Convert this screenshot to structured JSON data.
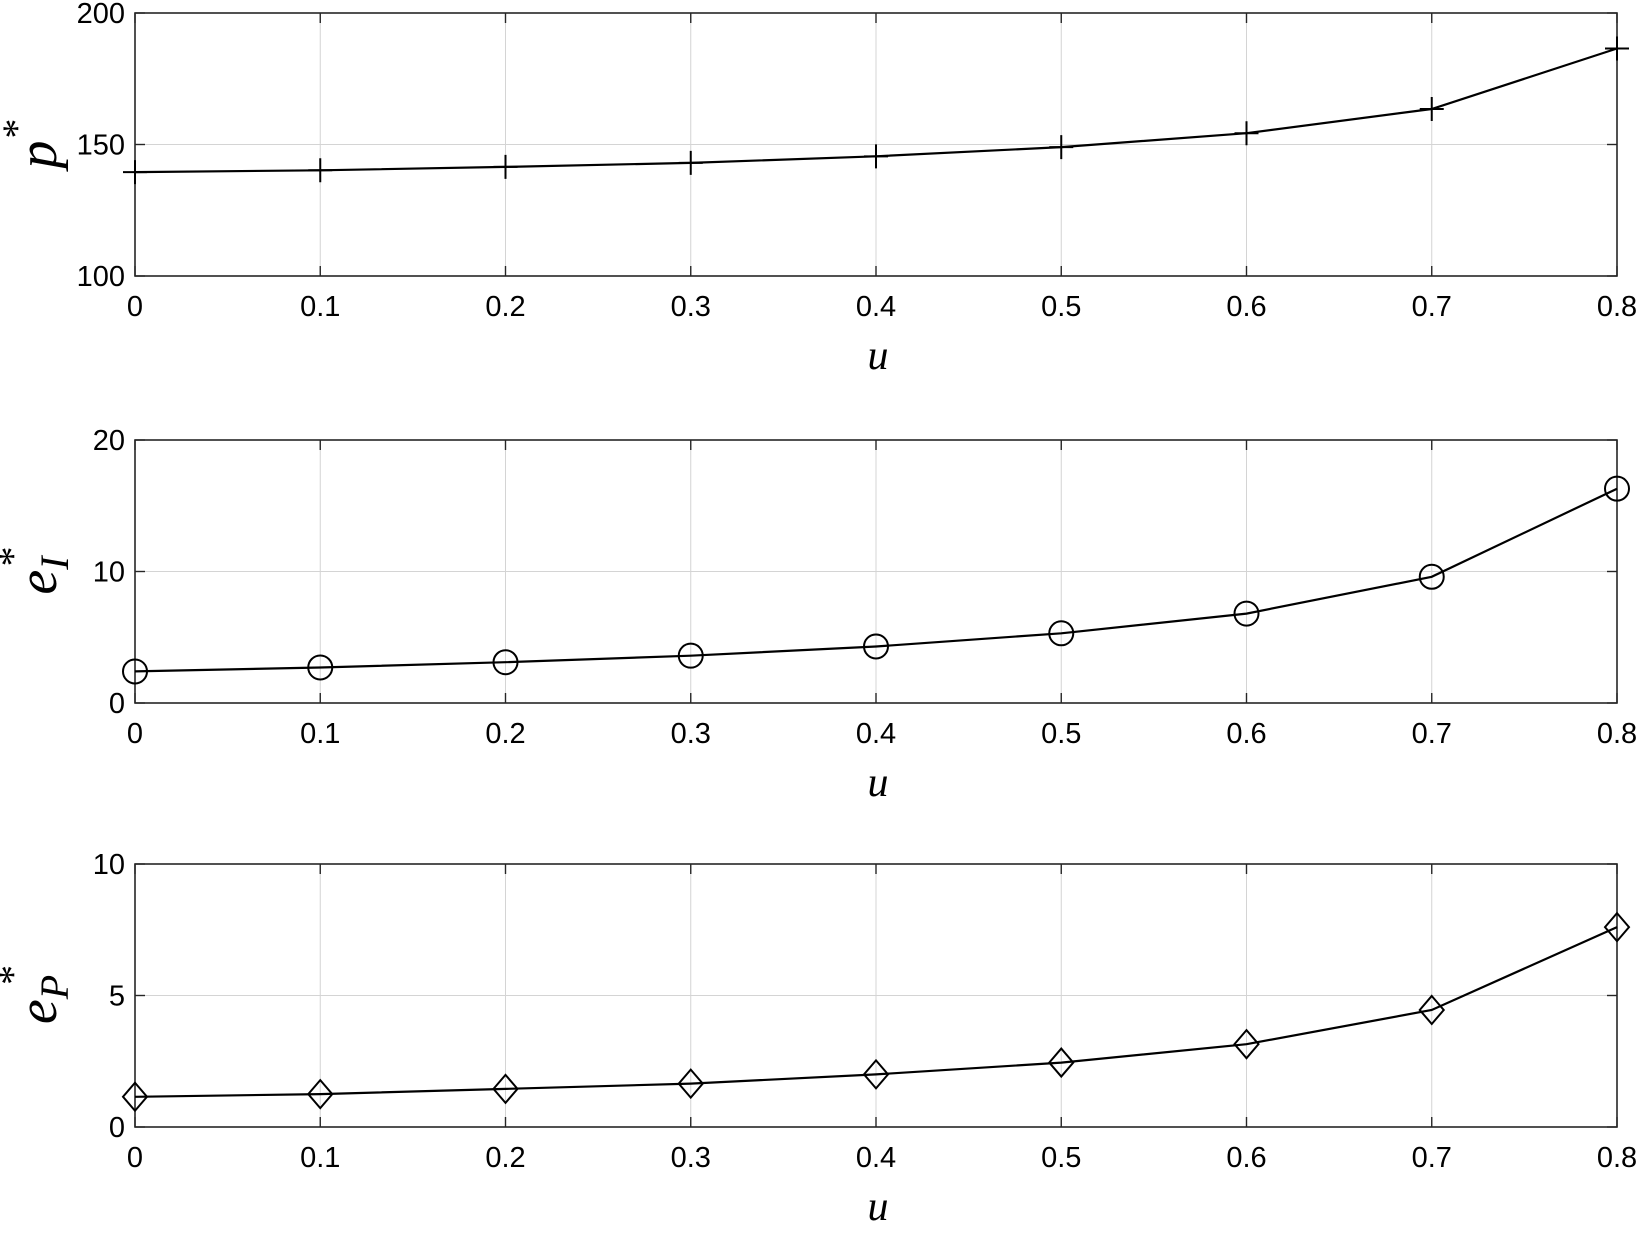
{
  "chart_data": [
    {
      "type": "line",
      "xlabel": "u",
      "ylabel": {
        "base": "p",
        "sup": "*",
        "sub": ""
      },
      "xlim": [
        0,
        0.8
      ],
      "ylim": [
        100,
        200
      ],
      "xticks": [
        0,
        0.1,
        0.2,
        0.3,
        0.4,
        0.5,
        0.6,
        0.7,
        0.8
      ],
      "xtick_labels": [
        "0",
        "0.1",
        "0.2",
        "0.3",
        "0.4",
        "0.5",
        "0.6",
        "0.7",
        "0.8"
      ],
      "yticks": [
        100,
        150,
        200
      ],
      "ytick_labels": [
        "100",
        "150",
        "200"
      ],
      "grid": true,
      "series": [
        {
          "marker": "plus",
          "color": "#000000",
          "x": [
            0,
            0.1,
            0.2,
            0.3,
            0.4,
            0.5,
            0.6,
            0.7,
            0.8
          ],
          "y": [
            139.5,
            140.2,
            141.5,
            143.0,
            145.5,
            149.0,
            154.3,
            163.5,
            186.5
          ]
        }
      ]
    },
    {
      "type": "line",
      "xlabel": "u",
      "ylabel": {
        "base": "e",
        "sup": "*",
        "sub": "I"
      },
      "xlim": [
        0,
        0.8
      ],
      "ylim": [
        0,
        20
      ],
      "xticks": [
        0,
        0.1,
        0.2,
        0.3,
        0.4,
        0.5,
        0.6,
        0.7,
        0.8
      ],
      "xtick_labels": [
        "0",
        "0.1",
        "0.2",
        "0.3",
        "0.4",
        "0.5",
        "0.6",
        "0.7",
        "0.8"
      ],
      "yticks": [
        0,
        10,
        20
      ],
      "ytick_labels": [
        "0",
        "10",
        "20"
      ],
      "grid": true,
      "series": [
        {
          "marker": "circle",
          "color": "#000000",
          "x": [
            0,
            0.1,
            0.2,
            0.3,
            0.4,
            0.5,
            0.6,
            0.7,
            0.8
          ],
          "y": [
            2.4,
            2.7,
            3.1,
            3.6,
            4.3,
            5.3,
            6.8,
            9.6,
            16.3
          ]
        }
      ]
    },
    {
      "type": "line",
      "xlabel": "u",
      "ylabel": {
        "base": "e",
        "sup": "*",
        "sub": "P"
      },
      "xlim": [
        0,
        0.8
      ],
      "ylim": [
        0,
        10
      ],
      "xticks": [
        0,
        0.1,
        0.2,
        0.3,
        0.4,
        0.5,
        0.6,
        0.7,
        0.8
      ],
      "xtick_labels": [
        "0",
        "0.1",
        "0.2",
        "0.3",
        "0.4",
        "0.5",
        "0.6",
        "0.7",
        "0.8"
      ],
      "yticks": [
        0,
        5,
        10
      ],
      "ytick_labels": [
        "0",
        "5",
        "10"
      ],
      "grid": true,
      "series": [
        {
          "marker": "diamond",
          "color": "#000000",
          "x": [
            0,
            0.1,
            0.2,
            0.3,
            0.4,
            0.5,
            0.6,
            0.7,
            0.8
          ],
          "y": [
            1.15,
            1.25,
            1.45,
            1.65,
            2.0,
            2.45,
            3.15,
            4.45,
            7.6
          ]
        }
      ]
    }
  ]
}
